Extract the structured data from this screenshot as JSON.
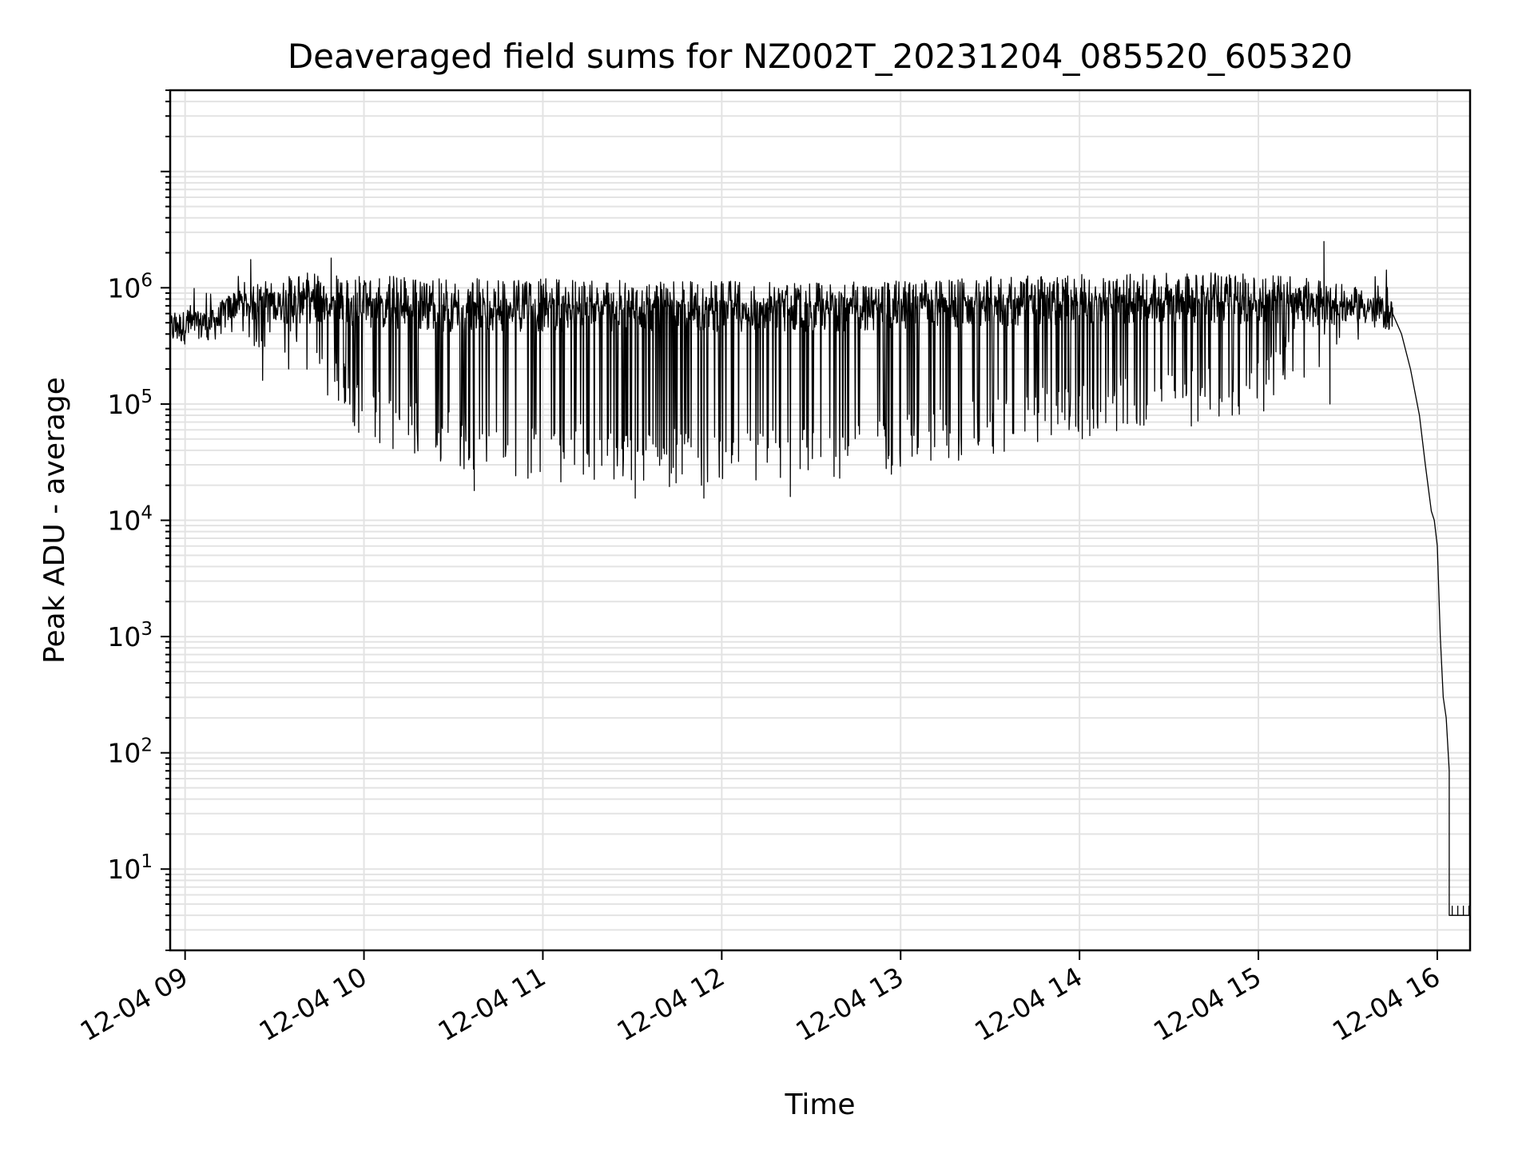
{
  "chart_data": {
    "type": "line",
    "title": "Deaveraged field sums for NZ002T_20231204_085520_605320",
    "xlabel": "Time",
    "ylabel": "Peak ADU - average",
    "yscale": "log",
    "grid": true,
    "legend": "none",
    "xlim": [
      "2023-12-04 08:55",
      "2023-12-04 16:11"
    ],
    "ylim": [
      2,
      50000000
    ],
    "x_ticks": [
      {
        "t": "2023-12-04 09:00",
        "label": "12-04 09"
      },
      {
        "t": "2023-12-04 10:00",
        "label": "12-04 10"
      },
      {
        "t": "2023-12-04 11:00",
        "label": "12-04 11"
      },
      {
        "t": "2023-12-04 12:00",
        "label": "12-04 12"
      },
      {
        "t": "2023-12-04 13:00",
        "label": "12-04 13"
      },
      {
        "t": "2023-12-04 14:00",
        "label": "12-04 14"
      },
      {
        "t": "2023-12-04 15:00",
        "label": "12-04 15"
      },
      {
        "t": "2023-12-04 16:00",
        "label": "12-04 16"
      }
    ],
    "y_ticks": [
      {
        "value": 10,
        "base": "10",
        "exp": "1"
      },
      {
        "value": 100,
        "base": "10",
        "exp": "2"
      },
      {
        "value": 1000,
        "base": "10",
        "exp": "3"
      },
      {
        "value": 10000,
        "base": "10",
        "exp": "4"
      },
      {
        "value": 100000,
        "base": "10",
        "exp": "5"
      },
      {
        "value": 1000000,
        "base": "10",
        "exp": "6"
      }
    ],
    "series": [
      {
        "color": "#000000",
        "envelope": [
          {
            "t": "2023-12-04 08:55",
            "upper": 600000,
            "base": 450000,
            "lower": 350000
          },
          {
            "t": "2023-12-04 09:10",
            "upper": 700000,
            "base": 500000,
            "lower": 300000
          },
          {
            "t": "2023-12-04 09:17",
            "upper": 1000000,
            "base": 750000,
            "lower": 400000
          },
          {
            "t": "2023-12-04 09:30",
            "upper": 1200000,
            "base": 700000,
            "lower": 200000
          },
          {
            "t": "2023-12-04 09:45",
            "upper": 1400000,
            "base": 700000,
            "lower": 120000
          },
          {
            "t": "2023-12-04 10:00",
            "upper": 1300000,
            "base": 650000,
            "lower": 50000
          },
          {
            "t": "2023-12-04 10:15",
            "upper": 1250000,
            "base": 600000,
            "lower": 35000
          },
          {
            "t": "2023-12-04 10:30",
            "upper": 1200000,
            "base": 600000,
            "lower": 28000
          },
          {
            "t": "2023-12-04 11:00",
            "upper": 1200000,
            "base": 600000,
            "lower": 22000
          },
          {
            "t": "2023-12-04 11:30",
            "upper": 1150000,
            "base": 600000,
            "lower": 19000
          },
          {
            "t": "2023-12-04 12:00",
            "upper": 1150000,
            "base": 600000,
            "lower": 20000
          },
          {
            "t": "2023-12-04 12:30",
            "upper": 1100000,
            "base": 600000,
            "lower": 20000
          },
          {
            "t": "2023-12-04 13:00",
            "upper": 1150000,
            "base": 620000,
            "lower": 25000
          },
          {
            "t": "2023-12-04 13:30",
            "upper": 1250000,
            "base": 650000,
            "lower": 35000
          },
          {
            "t": "2023-12-04 14:00",
            "upper": 1300000,
            "base": 700000,
            "lower": 50000
          },
          {
            "t": "2023-12-04 14:30",
            "upper": 1350000,
            "base": 700000,
            "lower": 60000
          },
          {
            "t": "2023-12-04 15:00",
            "upper": 1350000,
            "base": 700000,
            "lower": 80000
          },
          {
            "t": "2023-12-04 15:20",
            "upper": 1200000,
            "base": 700000,
            "lower": 200000
          },
          {
            "t": "2023-12-04 15:40",
            "upper": 900000,
            "base": 650000,
            "lower": 400000
          },
          {
            "t": "2023-12-04 15:45",
            "upper": 700000,
            "base": 600000,
            "lower": 500000
          }
        ],
        "spikes": [
          {
            "t": "2023-12-04 09:22",
            "value": 1750000
          },
          {
            "t": "2023-12-04 09:49",
            "value": 1800000
          },
          {
            "t": "2023-12-04 15:22",
            "value": 2500000
          },
          {
            "t": "2023-12-04 09:26",
            "value": 160000
          },
          {
            "t": "2023-12-04 10:37",
            "value": 18000
          },
          {
            "t": "2023-12-04 11:31",
            "value": 15500
          },
          {
            "t": "2023-12-04 11:54",
            "value": 15500
          },
          {
            "t": "2023-12-04 12:23",
            "value": 16000
          },
          {
            "t": "2023-12-04 15:24",
            "value": 100000
          }
        ],
        "tail": [
          {
            "t": "2023-12-04 15:45",
            "value": 600000
          },
          {
            "t": "2023-12-04 15:48",
            "value": 400000
          },
          {
            "t": "2023-12-04 15:51",
            "value": 200000
          },
          {
            "t": "2023-12-04 15:54",
            "value": 80000
          },
          {
            "t": "2023-12-04 15:56",
            "value": 30000
          },
          {
            "t": "2023-12-04 15:58",
            "value": 12000
          },
          {
            "t": "2023-12-04 15:59",
            "value": 10000
          },
          {
            "t": "2023-12-04 16:00",
            "value": 6000
          },
          {
            "t": "2023-12-04 16:01",
            "value": 1000
          },
          {
            "t": "2023-12-04 16:02",
            "value": 300
          },
          {
            "t": "2023-12-04 16:03",
            "value": 200
          },
          {
            "t": "2023-12-04 16:04",
            "value": 70
          },
          {
            "t": "2023-12-04 16:04",
            "value": 4
          },
          {
            "t": "2023-12-04 16:11",
            "value": 4
          }
        ]
      }
    ]
  }
}
